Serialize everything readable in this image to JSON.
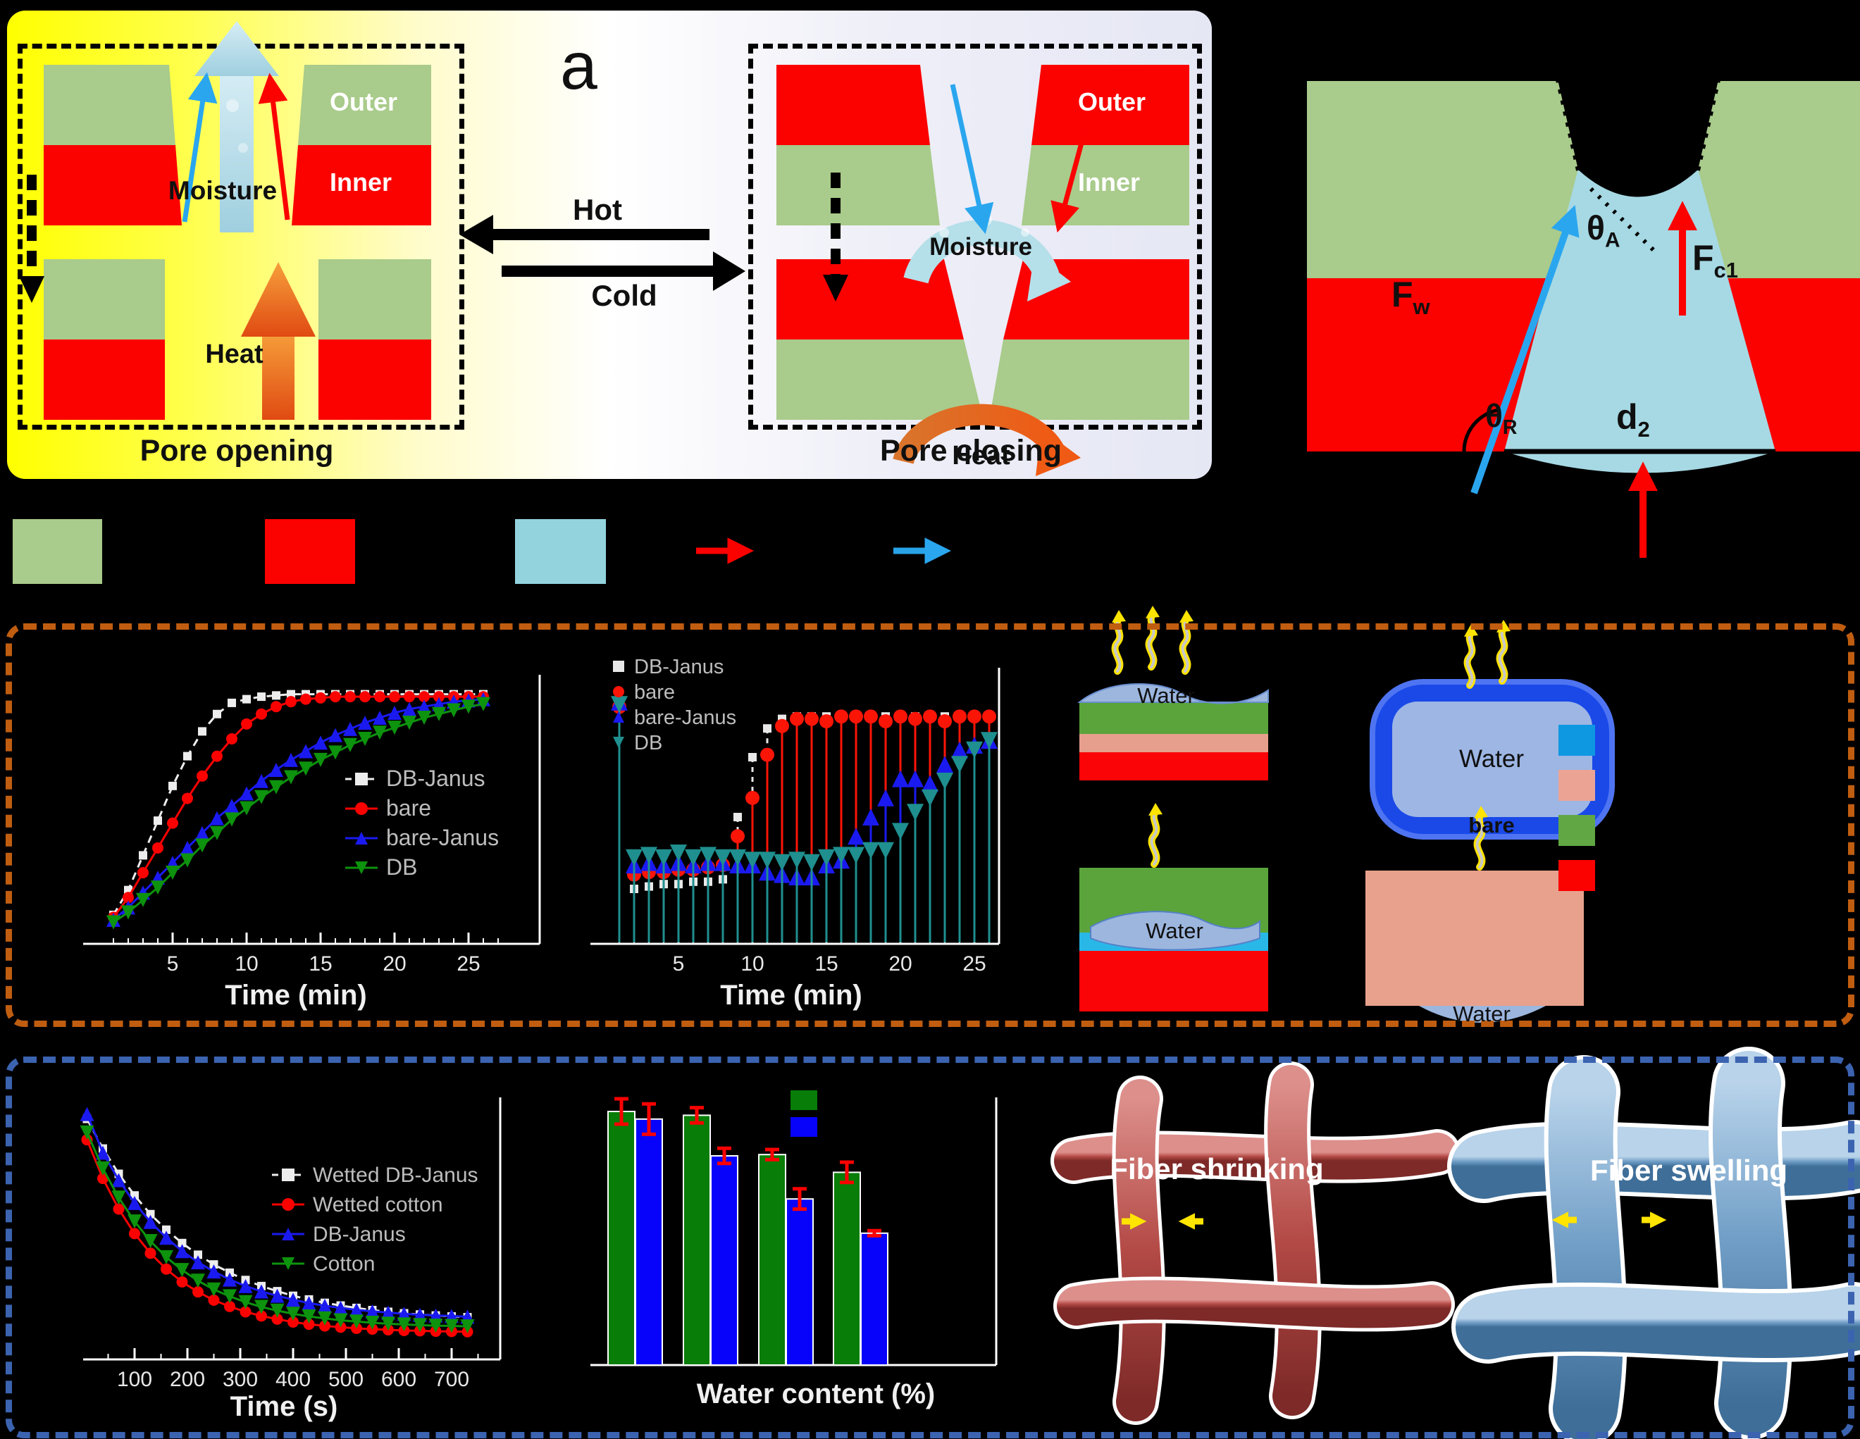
{
  "figure": {
    "panel_label": "a",
    "pore_opening": {
      "title": "Pore opening",
      "outer": "Outer",
      "inner": "Inner",
      "moisture": "Moisture",
      "heat": "Heat"
    },
    "pore_closing": {
      "title": "Pore closing",
      "outer": "Outer",
      "inner": "Inner",
      "moisture": "Moisture",
      "heat": "Heat"
    },
    "transition": {
      "hot": "Hot",
      "cold": "Cold"
    },
    "force_diagram": {
      "f_w": {
        "main": "F",
        "sub": "w"
      },
      "theta_a": {
        "main": "θ",
        "sub": "A"
      },
      "f_c1": {
        "main": "F",
        "sub": "c1"
      },
      "theta_r": {
        "main": "θ",
        "sub": "R"
      },
      "d_2": {
        "main": "d",
        "sub": "2"
      }
    },
    "material_legend": {
      "swatches": [
        "#a9cb8b",
        "#fb0100",
        "#92d3de"
      ],
      "arrow_colors": [
        "#fb0100",
        "#29a3e8"
      ],
      "labels_visible": false
    }
  },
  "panel_b": {
    "water_label": "Water",
    "bare_label": "bare",
    "schematic_legend_swatches": [
      "#0f98e2",
      "#eba494",
      "#61a744",
      "#fb0100"
    ]
  },
  "panel_c": {
    "fiber_shrinking": "Fiber shrinking",
    "fiber_swelling": "Fiber swelling",
    "bar_legend_swatches": [
      "#087d08",
      "#0703fa"
    ]
  },
  "chart_data": [
    {
      "id": "wicking",
      "type": "line",
      "title": "",
      "xlabel": "Time (min)",
      "ylabel": "",
      "xticks": [
        5,
        10,
        15,
        20,
        25
      ],
      "xlim": [
        0,
        29
      ],
      "ylim_normalized": [
        0,
        1
      ],
      "grid": false,
      "legend_position": "center-right",
      "x": [
        1,
        2,
        3,
        4,
        5,
        6,
        7,
        8,
        9,
        10,
        11,
        12,
        13,
        14,
        15,
        16,
        17,
        18,
        19,
        20,
        21,
        22,
        23,
        24,
        25,
        26
      ],
      "series": [
        {
          "name": "DB-Janus",
          "color": "#ededed",
          "marker": "square",
          "dashed": true,
          "y": [
            0.06,
            0.16,
            0.3,
            0.44,
            0.58,
            0.7,
            0.8,
            0.87,
            0.915,
            0.93,
            0.94,
            0.945,
            0.95,
            0.95,
            0.95,
            0.95,
            0.95,
            0.95,
            0.95,
            0.95,
            0.95,
            0.95,
            0.95,
            0.95,
            0.95,
            0.95
          ]
        },
        {
          "name": "bare",
          "color": "#fb0100",
          "marker": "circle",
          "dashed": false,
          "y": [
            0.05,
            0.13,
            0.23,
            0.33,
            0.43,
            0.53,
            0.62,
            0.7,
            0.77,
            0.83,
            0.87,
            0.9,
            0.92,
            0.93,
            0.935,
            0.94,
            0.94,
            0.94,
            0.94,
            0.94,
            0.94,
            0.94,
            0.94,
            0.94,
            0.94,
            0.94
          ]
        },
        {
          "name": "bare-Janus",
          "color": "#1a1af0",
          "marker": "triangle-up",
          "dashed": false,
          "y": [
            0.04,
            0.09,
            0.15,
            0.21,
            0.27,
            0.33,
            0.39,
            0.45,
            0.5,
            0.55,
            0.6,
            0.645,
            0.685,
            0.72,
            0.755,
            0.785,
            0.81,
            0.835,
            0.855,
            0.875,
            0.89,
            0.9,
            0.91,
            0.92,
            0.925,
            0.93
          ]
        },
        {
          "name": "DB",
          "color": "#0d930d",
          "marker": "triangle-down",
          "dashed": false,
          "y": [
            0.03,
            0.07,
            0.12,
            0.17,
            0.23,
            0.28,
            0.34,
            0.39,
            0.445,
            0.49,
            0.535,
            0.575,
            0.615,
            0.65,
            0.685,
            0.715,
            0.745,
            0.77,
            0.795,
            0.815,
            0.835,
            0.855,
            0.87,
            0.885,
            0.9,
            0.91
          ]
        }
      ]
    },
    {
      "id": "stem-response",
      "type": "stem",
      "title": "",
      "xlabel": "Time (min)",
      "ylabel": "",
      "xticks": [
        5,
        10,
        15,
        20,
        25
      ],
      "xlim": [
        0,
        27
      ],
      "ylim_normalized": [
        0,
        1
      ],
      "grid": false,
      "legend_position": "top-left",
      "x": [
        1,
        2,
        3,
        4,
        5,
        6,
        7,
        8,
        9,
        10,
        11,
        12,
        13,
        14,
        15,
        16,
        17,
        18,
        19,
        20,
        21,
        22,
        23,
        24,
        25,
        26
      ],
      "series": [
        {
          "name": "DB-Janus",
          "color": "#e8e8e8",
          "marker": "square",
          "dashed": true,
          "y": [
            0.97,
            0.2,
            0.21,
            0.22,
            0.22,
            0.23,
            0.23,
            0.24,
            0.5,
            0.75,
            0.87,
            0.91,
            0.92,
            0.92,
            0.92,
            0.92,
            0.92,
            0.92,
            0.92,
            0.92,
            0.92,
            0.92,
            0.92,
            0.92,
            0.92,
            0.92
          ]
        },
        {
          "name": "bare",
          "color": "#fb1507",
          "marker": "circle",
          "dashed": false,
          "y": [
            0.96,
            0.26,
            0.27,
            0.27,
            0.28,
            0.28,
            0.29,
            0.3,
            0.42,
            0.58,
            0.76,
            0.88,
            0.91,
            0.91,
            0.9,
            0.92,
            0.92,
            0.92,
            0.9,
            0.92,
            0.91,
            0.92,
            0.9,
            0.92,
            0.92,
            0.92
          ]
        },
        {
          "name": "bare-Janus",
          "color": "#1a1af0",
          "marker": "triangle-up",
          "dashed": false,
          "y": [
            0.98,
            0.3,
            0.31,
            0.3,
            0.31,
            0.3,
            0.31,
            0.31,
            0.3,
            0.3,
            0.27,
            0.26,
            0.25,
            0.25,
            0.3,
            0.32,
            0.42,
            0.5,
            0.58,
            0.66,
            0.66,
            0.64,
            0.72,
            0.78,
            0.8,
            0.82
          ]
        },
        {
          "name": "DB",
          "color": "#1f8f8f",
          "marker": "triangle-down",
          "dashed": false,
          "y": [
            0.97,
            0.33,
            0.34,
            0.33,
            0.35,
            0.33,
            0.34,
            0.33,
            0.33,
            0.32,
            0.32,
            0.31,
            0.32,
            0.31,
            0.33,
            0.34,
            0.34,
            0.36,
            0.36,
            0.44,
            0.52,
            0.58,
            0.65,
            0.72,
            0.78,
            0.82
          ]
        }
      ]
    },
    {
      "id": "evaporation",
      "type": "line",
      "title": "",
      "xlabel": "Time (s)",
      "ylabel": "",
      "xticks": [
        100,
        200,
        300,
        400,
        500,
        600,
        700
      ],
      "xlim": [
        0,
        760
      ],
      "ylim_normalized": [
        0,
        1
      ],
      "grid": false,
      "legend_position": "center-right",
      "x": [
        10,
        40,
        70,
        100,
        130,
        160,
        190,
        220,
        250,
        280,
        310,
        340,
        370,
        400,
        430,
        460,
        490,
        520,
        550,
        580,
        610,
        640,
        670,
        700,
        730
      ],
      "series": [
        {
          "name": "Wetted DB-Janus",
          "color": "#ededed",
          "marker": "square",
          "dashed": true,
          "y": [
            0.955,
            0.833,
            0.729,
            0.64,
            0.563,
            0.499,
            0.444,
            0.396,
            0.356,
            0.322,
            0.292,
            0.267,
            0.246,
            0.227,
            0.212,
            0.198,
            0.187,
            0.177,
            0.168,
            0.161,
            0.155,
            0.15,
            0.146,
            0.142,
            0.139
          ]
        },
        {
          "name": "Wetted cotton",
          "color": "#fb0100",
          "marker": "circle",
          "dashed": false,
          "y": [
            0.869,
            0.71,
            0.584,
            0.483,
            0.402,
            0.337,
            0.284,
            0.243,
            0.209,
            0.183,
            0.161,
            0.144,
            0.131,
            0.119,
            0.11,
            0.103,
            0.098,
            0.093,
            0.09,
            0.087,
            0.084,
            0.083,
            0.081,
            0.08,
            0.079
          ]
        },
        {
          "name": "DB-Janus",
          "color": "#1a1af0",
          "marker": "triangle-up",
          "dashed": false,
          "y": [
            0.975,
            0.816,
            0.703,
            0.609,
            0.531,
            0.466,
            0.411,
            0.365,
            0.327,
            0.294,
            0.267,
            0.245,
            0.227,
            0.211,
            0.197,
            0.186,
            0.177,
            0.169,
            0.163,
            0.158,
            0.153,
            0.149,
            0.146,
            0.144,
            0.141
          ]
        },
        {
          "name": "Cotton",
          "color": "#0d930d",
          "marker": "triangle-down",
          "dashed": false,
          "y": [
            0.899,
            0.751,
            0.631,
            0.533,
            0.452,
            0.386,
            0.333,
            0.289,
            0.253,
            0.225,
            0.201,
            0.181,
            0.166,
            0.153,
            0.142,
            0.134,
            0.126,
            0.121,
            0.116,
            0.112,
            0.109,
            0.106,
            0.104,
            0.103,
            0.101
          ]
        }
      ]
    },
    {
      "id": "water-content",
      "type": "bar",
      "title": "",
      "xlabel": "Water content (%)",
      "ylabel": "",
      "x_labels_visible": false,
      "groups": 4,
      "series": [
        {
          "name": "",
          "color": "#087d08",
          "values": [
            100,
            98.5,
            83,
            76
          ],
          "errors": [
            5,
            3,
            2,
            4
          ]
        },
        {
          "name": "",
          "color": "#0703fa",
          "values": [
            97,
            82.5,
            65.5,
            52
          ],
          "errors": [
            6,
            3,
            4,
            1
          ]
        }
      ],
      "error_bar_color": "#fb0100",
      "legend_position": "top-right",
      "legend_labels_visible": false
    }
  ]
}
